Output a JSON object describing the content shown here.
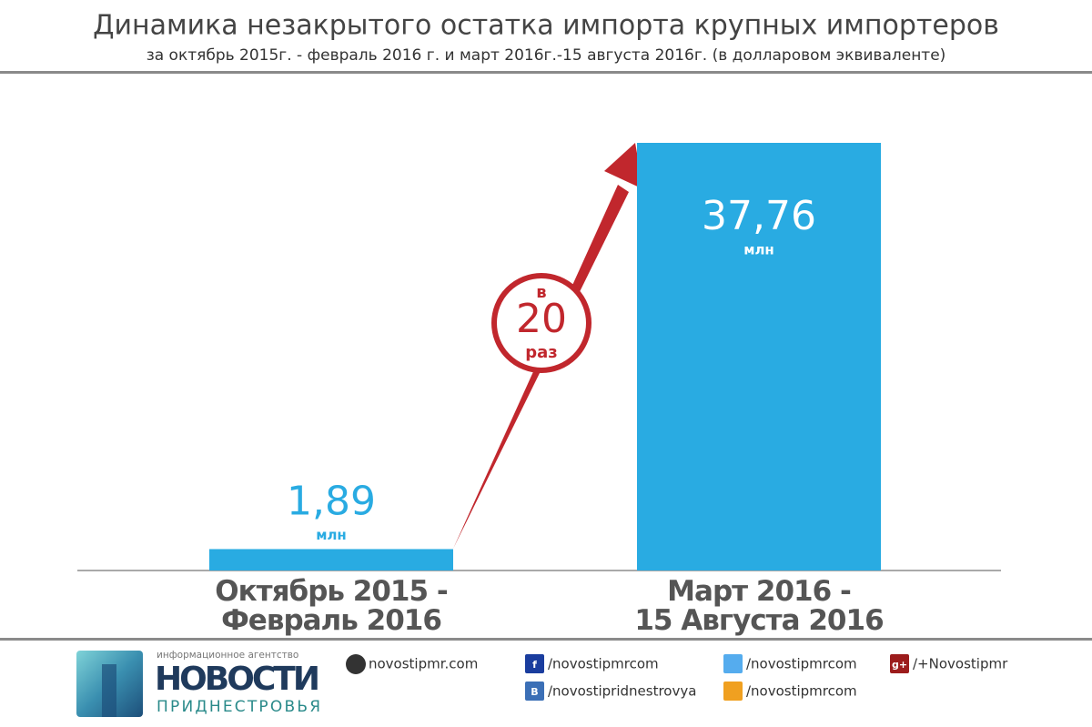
{
  "chart_data": {
    "type": "bar",
    "title": "Динамика незакрытого остатка импорта крупных импортеров",
    "subtitle": "за октябрь 2015г. - февраль 2016 г.   и   март 2016г.-15 августа 2016г. (в долларовом эквиваленте)",
    "categories": [
      "Октябрь 2015 -\nФевраль 2016",
      "Март 2016 -\n15 Августа 2016"
    ],
    "values": [
      1.89,
      37.76
    ],
    "value_labels": [
      "1,89",
      "37,76"
    ],
    "unit": "млн",
    "color": "#29abe2",
    "annotation": {
      "top": "в",
      "number": "20",
      "bottom": "раз"
    }
  },
  "footer": {
    "agency": "информационное агентство",
    "logo_title": "НОВОСТИ",
    "logo_subtitle": "ПРИДНЕСТРОВЬЯ",
    "links": [
      {
        "text": "novostipmr.com"
      },
      {
        "icon": "f",
        "text": "/novostipmrcom"
      },
      {
        "icon": "B",
        "text": "/novostipridnestrovya"
      },
      {
        "text": "/novostipmrcom"
      },
      {
        "text": "/novostipmrcom"
      },
      {
        "icon": "g+",
        "text": "/+Novostipmr"
      }
    ]
  }
}
